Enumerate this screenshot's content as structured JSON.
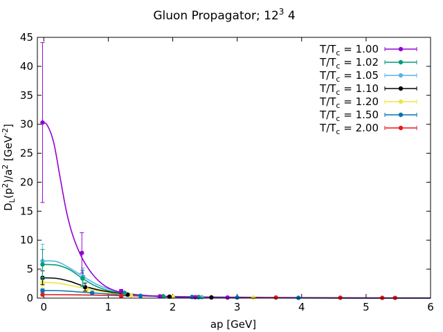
{
  "chart_data": {
    "type": "scatter",
    "title_main": "Gluon Propagator; 12",
    "title_sup": "3",
    "title_tail": " 4",
    "xlabel": "ap [GeV]",
    "ylabel_parts": {
      "a": "D",
      "b": "L",
      "c": "(p",
      "d": "2",
      "e": ")/a",
      "f": "2",
      "g": " [GeV",
      "h": "-2",
      "i": "]"
    },
    "xlim": [
      -0.1,
      6
    ],
    "ylim": [
      0,
      45
    ],
    "xticks": [
      0,
      1,
      2,
      3,
      4,
      5,
      6
    ],
    "yticks": [
      0,
      5,
      10,
      15,
      20,
      25,
      30,
      35,
      40,
      45
    ],
    "legend_position": "top-right",
    "series": [
      {
        "name_prefix": "T/T",
        "name_sub": "c",
        "name_value": " = 1.00",
        "color": "#9400d3",
        "points": [
          {
            "x": -0.02,
            "y": 30.3,
            "err": 13.8
          },
          {
            "x": 0.59,
            "y": 7.8,
            "err": 3.5
          },
          {
            "x": 1.2,
            "y": 1.2,
            "err": 0.3
          },
          {
            "x": 1.8,
            "y": 0.3,
            "err": 0.1
          },
          {
            "x": 2.35,
            "y": 0.15,
            "err": 0
          },
          {
            "x": 2.85,
            "y": 0.1,
            "err": 0
          }
        ],
        "curve": [
          [
            -0.02,
            30.3
          ],
          [
            0.05,
            29.9
          ],
          [
            0.15,
            27.0
          ],
          [
            0.25,
            21.0
          ],
          [
            0.35,
            15.0
          ],
          [
            0.45,
            10.8
          ],
          [
            0.59,
            7.0
          ],
          [
            0.75,
            4.2
          ],
          [
            0.9,
            2.5
          ],
          [
            1.05,
            1.5
          ],
          [
            1.2,
            1.0
          ],
          [
            1.5,
            0.5
          ],
          [
            2.0,
            0.2
          ],
          [
            3.0,
            0.05
          ],
          [
            6.0,
            0.0
          ]
        ]
      },
      {
        "name_prefix": "T/T",
        "name_sub": "c",
        "name_value": " = 1.02",
        "color": "#009e73",
        "points": [
          {
            "x": -0.02,
            "y": 5.8,
            "err": 2.6
          },
          {
            "x": 0.6,
            "y": 3.4,
            "err": 1.4
          },
          {
            "x": 1.25,
            "y": 0.9,
            "err": 0.2
          },
          {
            "x": 1.85,
            "y": 0.3,
            "err": 0.1
          },
          {
            "x": 2.4,
            "y": 0.15,
            "err": 0
          }
        ],
        "curve": [
          [
            -0.02,
            5.8
          ],
          [
            0.2,
            5.7
          ],
          [
            0.4,
            4.9
          ],
          [
            0.6,
            3.4
          ],
          [
            0.8,
            2.1
          ],
          [
            1.0,
            1.3
          ],
          [
            1.25,
            0.8
          ],
          [
            1.6,
            0.4
          ],
          [
            2.0,
            0.2
          ],
          [
            3.0,
            0.05
          ],
          [
            6.0,
            0.0
          ]
        ]
      },
      {
        "name_prefix": "T/T",
        "name_sub": "c",
        "name_value": " = 1.05",
        "color": "#56b4e9",
        "points": [
          {
            "x": -0.02,
            "y": 6.4,
            "err": 2.9
          },
          {
            "x": 0.61,
            "y": 3.7,
            "err": 1.5
          },
          {
            "x": 1.25,
            "y": 0.9,
            "err": 0.2
          },
          {
            "x": 1.85,
            "y": 0.35,
            "err": 0.1
          },
          {
            "x": 2.45,
            "y": 0.15,
            "err": 0
          }
        ],
        "curve": [
          [
            -0.02,
            6.4
          ],
          [
            0.2,
            6.3
          ],
          [
            0.4,
            5.2
          ],
          [
            0.6,
            3.8
          ],
          [
            0.8,
            2.5
          ],
          [
            1.0,
            1.6
          ],
          [
            1.25,
            0.9
          ],
          [
            1.6,
            0.45
          ],
          [
            2.0,
            0.22
          ],
          [
            3.0,
            0.06
          ],
          [
            6.0,
            0.0
          ]
        ]
      },
      {
        "name_prefix": "T/T",
        "name_sub": "c",
        "name_value": " = 1.10",
        "color": "#000000",
        "points": [
          {
            "x": -0.02,
            "y": 3.5,
            "err": 1.2
          },
          {
            "x": 0.64,
            "y": 1.9,
            "err": 0.7
          },
          {
            "x": 1.3,
            "y": 0.6,
            "err": 0.15
          },
          {
            "x": 1.95,
            "y": 0.25,
            "err": 0
          },
          {
            "x": 2.6,
            "y": 0.12,
            "err": 0
          }
        ],
        "curve": [
          [
            -0.02,
            3.5
          ],
          [
            0.2,
            3.4
          ],
          [
            0.4,
            2.9
          ],
          [
            0.64,
            2.0
          ],
          [
            0.9,
            1.3
          ],
          [
            1.3,
            0.65
          ],
          [
            1.7,
            0.35
          ],
          [
            2.2,
            0.18
          ],
          [
            3.0,
            0.07
          ],
          [
            6.0,
            0.0
          ]
        ]
      },
      {
        "name_prefix": "T/T",
        "name_sub": "c",
        "name_value": " = 1.20",
        "color": "#f0e442",
        "points": [
          {
            "x": -0.02,
            "y": 2.7,
            "err": 0.8
          },
          {
            "x": 0.66,
            "y": 1.5,
            "err": 0.4
          },
          {
            "x": 1.35,
            "y": 0.5,
            "err": 0.1
          },
          {
            "x": 2.0,
            "y": 0.2,
            "err": 0
          },
          {
            "x": 3.25,
            "y": 0.08,
            "err": 0
          }
        ],
        "curve": [
          [
            -0.02,
            2.7
          ],
          [
            0.2,
            2.6
          ],
          [
            0.45,
            2.1
          ],
          [
            0.7,
            1.5
          ],
          [
            1.0,
            0.95
          ],
          [
            1.35,
            0.55
          ],
          [
            1.8,
            0.28
          ],
          [
            2.4,
            0.14
          ],
          [
            3.2,
            0.06
          ],
          [
            6.0,
            0.0
          ]
        ]
      },
      {
        "name_prefix": "T/T",
        "name_sub": "c",
        "name_value": " = 1.50",
        "color": "#0072b2",
        "points": [
          {
            "x": -0.02,
            "y": 1.3,
            "err": 0.3
          },
          {
            "x": 0.75,
            "y": 0.9,
            "err": 0.2
          },
          {
            "x": 1.5,
            "y": 0.4,
            "err": 0
          },
          {
            "x": 2.3,
            "y": 0.2,
            "err": 0
          },
          {
            "x": 3.0,
            "y": 0.1,
            "err": 0
          },
          {
            "x": 3.95,
            "y": 0.05,
            "err": 0
          }
        ],
        "curve": [
          [
            -0.02,
            1.3
          ],
          [
            0.3,
            1.25
          ],
          [
            0.75,
            0.9
          ],
          [
            1.2,
            0.6
          ],
          [
            1.8,
            0.35
          ],
          [
            2.5,
            0.18
          ],
          [
            3.5,
            0.08
          ],
          [
            6.0,
            0.01
          ]
        ]
      },
      {
        "name_prefix": "T/T",
        "name_sub": "c",
        "name_value": " = 2.00",
        "color": "#e41a1c",
        "points": [
          {
            "x": -0.02,
            "y": 0.6,
            "err": 0.1
          },
          {
            "x": 1.2,
            "y": 0.35,
            "err": 0
          },
          {
            "x": 2.4,
            "y": 0.2,
            "err": 0
          },
          {
            "x": 3.6,
            "y": 0.1,
            "err": 0
          },
          {
            "x": 4.6,
            "y": 0.07,
            "err": 0
          },
          {
            "x": 5.25,
            "y": 0.05,
            "err": 0
          },
          {
            "x": 5.45,
            "y": 0.04,
            "err": 0
          }
        ],
        "curve": [
          [
            -0.02,
            0.6
          ],
          [
            0.6,
            0.55
          ],
          [
            1.2,
            0.42
          ],
          [
            2.0,
            0.28
          ],
          [
            3.0,
            0.15
          ],
          [
            4.0,
            0.09
          ],
          [
            5.0,
            0.05
          ],
          [
            6.0,
            0.03
          ]
        ]
      }
    ]
  }
}
